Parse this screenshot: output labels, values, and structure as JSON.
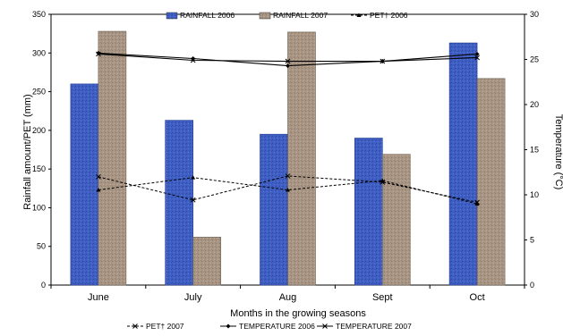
{
  "chart_data": {
    "type": "bar",
    "categories": [
      "June",
      "July",
      "Aug",
      "Sept",
      "Oct"
    ],
    "xlabel": "Months in the growing seasons",
    "ylabel": "Rainfall amount/PET (mm)",
    "ylim": [
      0,
      350
    ],
    "yticks": [
      0,
      50,
      100,
      150,
      200,
      250,
      300,
      350
    ],
    "y2label": "Temperature (°C)",
    "y2lim": [
      0,
      30
    ],
    "y2ticks": [
      0,
      5,
      10,
      15,
      20,
      25,
      30
    ],
    "legend_placement": "top and bottom",
    "series": [
      {
        "name": "RAINFALL 2006",
        "kind": "bar",
        "axis": "left",
        "color": "#3f5fc4",
        "values": [
          260,
          213,
          195,
          190,
          313
        ]
      },
      {
        "name": "RAINFALL 2007",
        "kind": "bar",
        "axis": "left",
        "color": "#a89584",
        "values": [
          328,
          62,
          327,
          169,
          267
        ]
      },
      {
        "name": "PET† 2006",
        "kind": "line",
        "axis": "left",
        "style": "dashed-triangle",
        "color": "#000000",
        "values": [
          123,
          139,
          123,
          135,
          105
        ]
      },
      {
        "name": "PET† 2007",
        "kind": "line",
        "axis": "left",
        "style": "dashed-cross",
        "color": "#000000",
        "values": [
          140,
          110,
          141,
          133,
          107
        ]
      },
      {
        "name": "TEMPERATURE 2006",
        "kind": "line",
        "axis": "right",
        "style": "solid-diamond",
        "color": "#000000",
        "values": [
          25.7,
          25.1,
          24.3,
          24.8,
          25.6
        ]
      },
      {
        "name": "TEMPERATURE 2007",
        "kind": "line",
        "axis": "right",
        "style": "solid-cross",
        "color": "#000000",
        "values": [
          25.6,
          24.9,
          24.8,
          24.8,
          25.2
        ]
      }
    ]
  }
}
